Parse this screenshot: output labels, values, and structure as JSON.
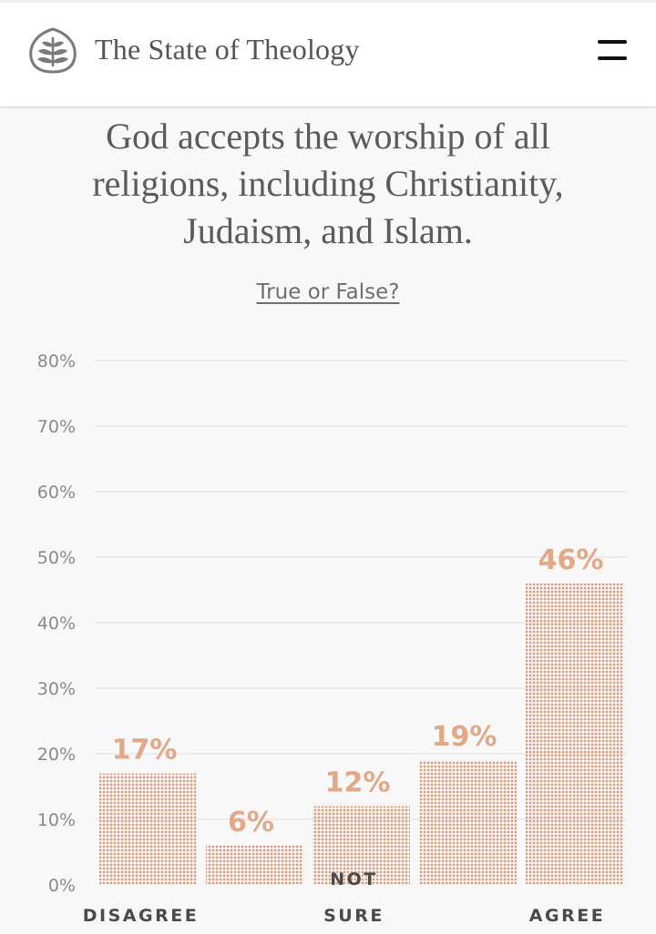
{
  "header": {
    "brand": "The State of Theology",
    "logo_icon": "ligonier-tree-logo-icon",
    "menu_icon": "hamburger-menu-icon"
  },
  "question": {
    "text": "God accepts the worship of all religions, including Christianity, Judaism, and Islam.",
    "subtitle": "True or False?"
  },
  "colors": {
    "bar": "#e3a888",
    "bar_dot": "#dc9a78",
    "grid": "#dedede",
    "background": "#f7f8f7"
  },
  "chart_data": {
    "type": "bar",
    "title": "God accepts the worship of all religions, including Christianity, Judaism, and Islam.",
    "subtitle": "True or False?",
    "categories": [
      "",
      "",
      "",
      "",
      ""
    ],
    "values": [
      17,
      6,
      12,
      19,
      46
    ],
    "value_labels": [
      "17%",
      "6%",
      "12%",
      "19%",
      "46%"
    ],
    "group_labels": [
      {
        "text": "DISAGREE",
        "lines": [
          "DISAGREE"
        ],
        "bar_index": 0
      },
      {
        "text": "NOT SURE",
        "lines": [
          "NOT",
          "SURE"
        ],
        "bar_index": 2
      },
      {
        "text": "AGREE",
        "lines": [
          "AGREE"
        ],
        "bar_index": 4
      }
    ],
    "yticks": [
      "0%",
      "10%",
      "20%",
      "30%",
      "40%",
      "50%",
      "60%",
      "70%",
      "80%"
    ],
    "ylim": [
      0,
      80
    ],
    "xlabel": "",
    "ylabel": "",
    "grid": true,
    "bar_style": "dotted"
  }
}
